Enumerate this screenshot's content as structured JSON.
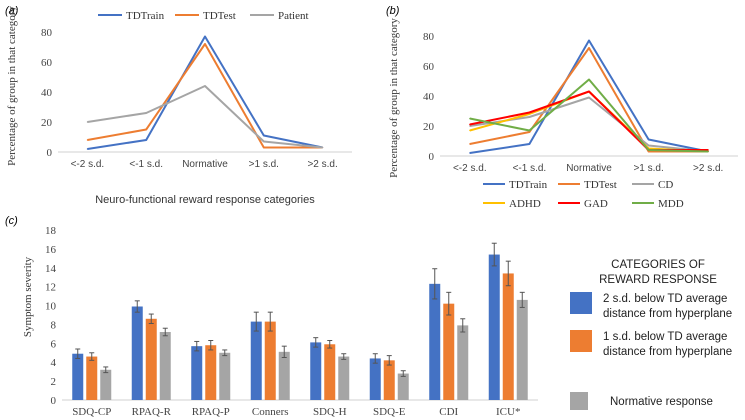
{
  "chart_data": [
    {
      "type": "line",
      "panel_label": "(a)",
      "title": "",
      "xlabel": "Neuro-functional reward response categories",
      "ylabel": "Percentage of group in that category",
      "categories": [
        "<-2 s.d.",
        "<-1 s.d.",
        "Normative",
        ">1 s.d.",
        ">2 s.d."
      ],
      "ylim": [
        0,
        80
      ],
      "yticks": [
        0,
        20,
        40,
        60,
        80
      ],
      "legend_position": "top",
      "series": [
        {
          "name": "TDTrain",
          "color": "#4472c4",
          "values": [
            2,
            8,
            77,
            11,
            3
          ]
        },
        {
          "name": "TDTest",
          "color": "#ed7d31",
          "values": [
            8,
            15,
            72,
            3,
            3
          ]
        },
        {
          "name": "Patient",
          "color": "#a5a5a5",
          "values": [
            20,
            26,
            44,
            7,
            3
          ]
        }
      ]
    },
    {
      "type": "line",
      "panel_label": "(b)",
      "title": "",
      "xlabel": "",
      "ylabel": "Percentage of group in that category",
      "categories": [
        "<-2 s.d.",
        "<-1 s.d.",
        "Normative",
        ">1 s.d.",
        ">2 s.d."
      ],
      "ylim": [
        0,
        80
      ],
      "yticks": [
        0,
        20,
        40,
        60,
        80
      ],
      "legend_position": "bottom",
      "series": [
        {
          "name": "TDTrain",
          "color": "#4472c4",
          "values": [
            2,
            8,
            77,
            11,
            3
          ]
        },
        {
          "name": "TDTest",
          "color": "#ed7d31",
          "values": [
            8,
            16,
            72,
            3,
            3
          ]
        },
        {
          "name": "CD",
          "color": "#a5a5a5",
          "values": [
            20,
            26,
            39,
            7,
            3
          ]
        },
        {
          "name": "ADHD",
          "color": "#ffc000",
          "values": [
            17,
            28,
            43,
            5,
            3
          ]
        },
        {
          "name": "GAD",
          "color": "#ff0000",
          "values": [
            21,
            29,
            43,
            4,
            4
          ]
        },
        {
          "name": "MDD",
          "color": "#70ad47",
          "values": [
            25,
            17,
            51,
            4,
            3
          ]
        }
      ]
    },
    {
      "type": "bar",
      "panel_label": "(c)",
      "title": "",
      "xlabel": "",
      "ylabel": "Symptom severity",
      "categories": [
        "SDQ-CP",
        "RPAQ-R",
        "RPAQ-P",
        "Conners",
        "SDQ-H",
        "SDQ-E",
        "CDI",
        "ICU*"
      ],
      "ylim": [
        0,
        18
      ],
      "yticks": [
        0,
        2,
        4,
        6,
        8,
        10,
        12,
        14,
        16,
        18
      ],
      "legend_title": "CATEGORIES OF REWARD RESPONSE",
      "series": [
        {
          "name": "2 s.d. below TD average distance from hyperplane",
          "color": "#4472c4",
          "values": [
            4.9,
            9.9,
            5.7,
            8.3,
            6.1,
            4.4,
            12.3,
            15.4
          ],
          "errors": [
            0.5,
            0.6,
            0.5,
            1.0,
            0.5,
            0.5,
            1.6,
            1.2
          ]
        },
        {
          "name": "1 s.d. below TD average distance from hyperplane",
          "color": "#ed7d31",
          "values": [
            4.6,
            8.6,
            5.8,
            8.3,
            5.9,
            4.2,
            10.2,
            13.4
          ],
          "errors": [
            0.4,
            0.5,
            0.5,
            1.0,
            0.4,
            0.5,
            1.2,
            1.3
          ]
        },
        {
          "name": "Normative response",
          "color": "#a5a5a5",
          "values": [
            3.2,
            7.2,
            5.0,
            5.1,
            4.6,
            2.8,
            7.9,
            10.6
          ],
          "errors": [
            0.3,
            0.4,
            0.3,
            0.6,
            0.3,
            0.3,
            0.7,
            0.8
          ]
        }
      ]
    }
  ]
}
